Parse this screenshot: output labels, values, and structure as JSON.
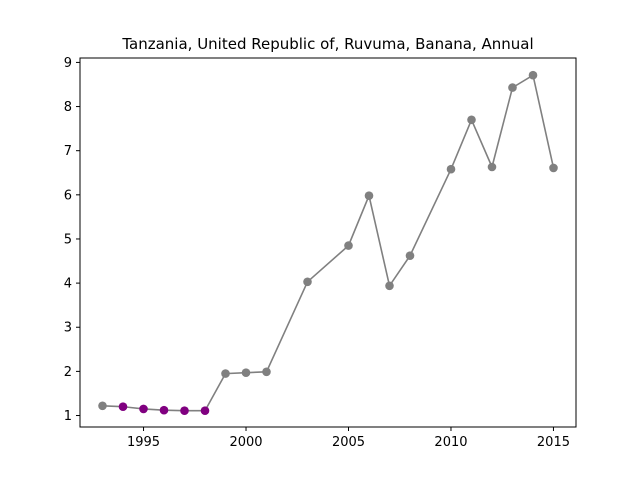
{
  "chart_data": {
    "type": "line",
    "title": "Tanzania, United Republic of, Ruvuma, Banana, Annual",
    "xlabel": "",
    "ylabel": "",
    "xlim": [
      1991.9,
      2016.1
    ],
    "ylim": [
      0.74,
      9.1
    ],
    "xticks": [
      1995,
      2000,
      2005,
      2010,
      2015
    ],
    "yticks": [
      1,
      2,
      3,
      4,
      5,
      6,
      7,
      8,
      9
    ],
    "grid": false,
    "legend": "none",
    "line_color": "#808080",
    "series": [
      {
        "x": [
          1993,
          1994,
          1995,
          1996,
          1997,
          1998,
          1999,
          2000,
          2001,
          2003,
          2005,
          2006,
          2007,
          2008,
          2010,
          2011,
          2012,
          2013,
          2014,
          2015
        ],
        "y": [
          1.22,
          1.2,
          1.15,
          1.12,
          1.11,
          1.11,
          1.95,
          1.97,
          1.99,
          4.03,
          4.85,
          5.98,
          3.94,
          4.62,
          6.58,
          7.7,
          6.63,
          8.43,
          8.71,
          6.61
        ],
        "colors": [
          "#808080",
          "#800080",
          "#800080",
          "#800080",
          "#800080",
          "#800080",
          "#808080",
          "#808080",
          "#808080",
          "#808080",
          "#808080",
          "#808080",
          "#808080",
          "#808080",
          "#808080",
          "#808080",
          "#808080",
          "#808080",
          "#808080",
          "#808080"
        ]
      }
    ]
  }
}
